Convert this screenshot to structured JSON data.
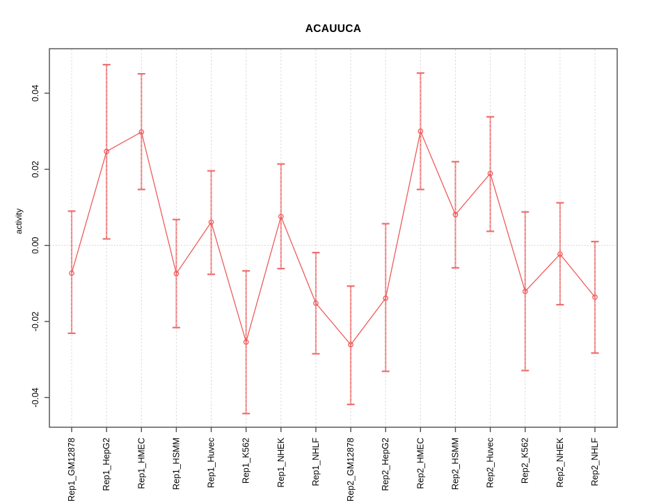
{
  "chart_data": {
    "type": "line",
    "title": "ACAUUCA",
    "xlabel": "",
    "ylabel": "activity",
    "categories": [
      "Rep1_GM12878",
      "Rep1_HepG2",
      "Rep1_HMEC",
      "Rep1_HSMM",
      "Rep1_Huvec",
      "Rep1_K562",
      "Rep1_NHEK",
      "Rep1_NHLF",
      "Rep2_GM12878",
      "Rep2_HepG2",
      "Rep2_HMEC",
      "Rep2_HSMM",
      "Rep2_Huvec",
      "Rep2_K562",
      "Rep2_NHEK",
      "Rep2_NHLF"
    ],
    "series": [
      {
        "name": "activity",
        "values": [
          -0.0073,
          0.0247,
          0.0298,
          -0.0074,
          0.0061,
          -0.0254,
          0.0076,
          -0.0152,
          -0.0261,
          -0.0139,
          0.03,
          0.0081,
          0.0189,
          -0.0121,
          -0.0023,
          -0.0136
        ],
        "ci_high": [
          0.009,
          0.0475,
          0.0451,
          0.0068,
          0.0196,
          -0.0067,
          0.0214,
          -0.0019,
          -0.0107,
          0.0057,
          0.0453,
          0.022,
          0.0338,
          0.0088,
          0.0112,
          0.001
        ],
        "ci_low": [
          -0.0231,
          0.0017,
          0.0147,
          -0.0216,
          -0.0076,
          -0.0442,
          -0.0061,
          -0.0285,
          -0.0418,
          -0.0331,
          0.0147,
          -0.0059,
          0.0037,
          -0.0329,
          -0.0156,
          -0.0283
        ]
      }
    ],
    "ylim": [
      -0.0478,
      0.0517
    ],
    "yticks": [
      -0.04,
      -0.02,
      0,
      0.02,
      0.04
    ],
    "ytick_labels": [
      "-0.04",
      "-0.02",
      "0.00",
      "0.02",
      "0.04"
    ],
    "grid": "vertical dashed gridline at each category; dotted horizontal line at 0",
    "legend": "none",
    "marker": "open-circle",
    "colors": {
      "line": "#ee5a5a",
      "marker": "#ee5a5a",
      "error_bar": "#f3a2a2",
      "error_bar_dash": "#e96060",
      "error_cap": "#ee6d6d",
      "grid": "#d9d9d9",
      "zero_line": "#c9c9c9",
      "axis_box": "#4d4d4d",
      "text": "#000000"
    }
  }
}
